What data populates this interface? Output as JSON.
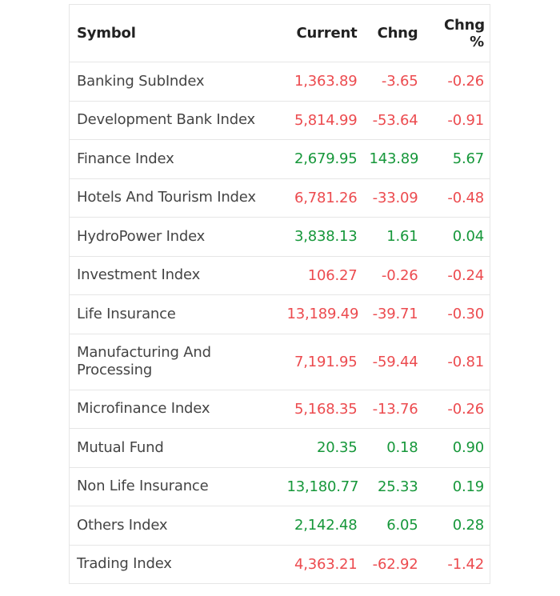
{
  "table": {
    "header": [
      "Symbol",
      "Current",
      "Chng",
      "Chng %"
    ],
    "rows": [
      [
        "Banking SubIndex",
        "1,363.89",
        "-3.65",
        "-0.26"
      ],
      [
        "Development Bank Index",
        "5,814.99",
        "-53.64",
        "-0.91"
      ],
      [
        "Finance Index",
        "2,679.95",
        "143.89",
        "5.67"
      ],
      [
        "Hotels And Tourism Index",
        "6,781.26",
        "-33.09",
        "-0.48"
      ],
      [
        "HydroPower Index",
        "3,838.13",
        "1.61",
        "0.04"
      ],
      [
        "Investment Index",
        "106.27",
        "-0.26",
        "-0.24"
      ],
      [
        "Life Insurance",
        "13,189.49",
        "-39.71",
        "-0.30"
      ],
      [
        "Manufacturing And Processing",
        "7,191.95",
        "-59.44",
        "-0.81"
      ],
      [
        "Microfinance Index",
        "5,168.35",
        "-13.76",
        "-0.26"
      ],
      [
        "Mutual Fund",
        "20.35",
        "0.18",
        "0.90"
      ],
      [
        "Non Life Insurance",
        "13,180.77",
        "25.33",
        "0.19"
      ],
      [
        "Others Index",
        "2,142.48",
        "6.05",
        "0.28"
      ],
      [
        "Trading Index",
        "4,363.21",
        "-62.92",
        "-1.42"
      ]
    ],
    "up_color": "#16973a",
    "down_color": "#ec4b4f"
  }
}
